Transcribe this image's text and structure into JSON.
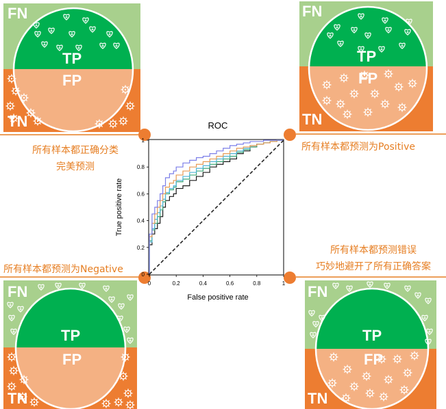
{
  "colors": {
    "light_green": "#a8d08d",
    "dark_green": "#00b050",
    "orange": "#ed7d31",
    "peach": "#f4b183",
    "white": "#ffffff"
  },
  "panels": {
    "top_left": {
      "fn": "FN",
      "tp": "TP",
      "fp": "FP",
      "tn": "TN"
    },
    "top_right": {
      "fn": "FN",
      "tp": "TP",
      "fp": "FP",
      "tn": "TN"
    },
    "bottom_left": {
      "fn": "FN",
      "tp": "TP",
      "fp": "FP",
      "tn": "TN"
    },
    "bottom_right": {
      "fn": "FN",
      "tp": "TP",
      "fp": "FP",
      "tn": "TN"
    }
  },
  "captions": {
    "top_left_line1": "所有样本都正确分类",
    "top_left_line2": "完美预测",
    "top_right": "所有样本都预测为Positive",
    "bottom_left": "所有样本都预测为Negative",
    "bottom_right_line1": "所有样本都预测错误",
    "bottom_right_line2": "巧妙地避开了所有正确答案"
  },
  "chart_data": {
    "type": "line",
    "title": "ROC",
    "xlabel": "False positive rate",
    "ylabel": "True positive rate",
    "xlim": [
      0,
      1
    ],
    "ylim": [
      0,
      1
    ],
    "x_ticks": [
      "0",
      "0.2",
      "0.4",
      "0.6",
      "0.8",
      "1"
    ],
    "y_ticks": [
      "0",
      "0.2",
      "0.4",
      "0.6",
      "0.8",
      "1"
    ],
    "series": [
      {
        "color": "#1a1a1a",
        "x": [
          0,
          0.02,
          0.04,
          0.06,
          0.08,
          0.1,
          0.12,
          0.15,
          0.18,
          0.2,
          0.25,
          0.3,
          0.35,
          0.4,
          0.45,
          0.5,
          0.55,
          0.6,
          0.65,
          0.7,
          0.75,
          0.8,
          0.85,
          0.9,
          0.95,
          1
        ],
        "y": [
          0,
          0.22,
          0.3,
          0.34,
          0.38,
          0.43,
          0.5,
          0.55,
          0.58,
          0.6,
          0.64,
          0.66,
          0.7,
          0.73,
          0.76,
          0.8,
          0.82,
          0.84,
          0.86,
          0.9,
          0.92,
          0.95,
          0.97,
          0.98,
          0.99,
          1
        ]
      },
      {
        "color": "#3aa676",
        "x": [
          0,
          0.02,
          0.04,
          0.06,
          0.08,
          0.1,
          0.12,
          0.15,
          0.18,
          0.2,
          0.25,
          0.3,
          0.35,
          0.4,
          0.45,
          0.5,
          0.55,
          0.6,
          0.65,
          0.7,
          0.75,
          0.8,
          0.85,
          0.9,
          0.95,
          1
        ],
        "y": [
          0,
          0.25,
          0.33,
          0.38,
          0.43,
          0.48,
          0.54,
          0.6,
          0.63,
          0.65,
          0.69,
          0.71,
          0.74,
          0.77,
          0.79,
          0.82,
          0.84,
          0.86,
          0.88,
          0.91,
          0.93,
          0.95,
          0.97,
          0.98,
          0.99,
          1
        ]
      },
      {
        "color": "#4cb3d6",
        "x": [
          0,
          0.02,
          0.04,
          0.06,
          0.08,
          0.1,
          0.12,
          0.15,
          0.18,
          0.2,
          0.25,
          0.3,
          0.35,
          0.4,
          0.45,
          0.5,
          0.55,
          0.6,
          0.65,
          0.7,
          0.75,
          0.8,
          0.85,
          0.9,
          0.95,
          1
        ],
        "y": [
          0,
          0.24,
          0.34,
          0.41,
          0.46,
          0.51,
          0.56,
          0.61,
          0.64,
          0.66,
          0.7,
          0.73,
          0.76,
          0.79,
          0.81,
          0.84,
          0.86,
          0.88,
          0.9,
          0.92,
          0.94,
          0.96,
          0.97,
          0.98,
          0.99,
          1
        ]
      },
      {
        "color": "#e69b55",
        "x": [
          0,
          0.02,
          0.04,
          0.06,
          0.08,
          0.1,
          0.12,
          0.15,
          0.18,
          0.2,
          0.25,
          0.3,
          0.35,
          0.4,
          0.45,
          0.5,
          0.55,
          0.6,
          0.65,
          0.7,
          0.75,
          0.8,
          0.85,
          0.9,
          0.95,
          1
        ],
        "y": [
          0,
          0.28,
          0.38,
          0.45,
          0.5,
          0.55,
          0.6,
          0.65,
          0.68,
          0.7,
          0.74,
          0.77,
          0.8,
          0.82,
          0.84,
          0.86,
          0.88,
          0.9,
          0.92,
          0.94,
          0.95,
          0.96,
          0.97,
          0.98,
          0.99,
          1
        ]
      },
      {
        "color": "#7b7ee8",
        "x": [
          0,
          0.02,
          0.04,
          0.06,
          0.08,
          0.1,
          0.12,
          0.15,
          0.18,
          0.2,
          0.25,
          0.3,
          0.35,
          0.4,
          0.45,
          0.5,
          0.55,
          0.6,
          0.65,
          0.7,
          0.75,
          0.8,
          0.85,
          0.9,
          0.95,
          1
        ],
        "y": [
          0,
          0.3,
          0.45,
          0.5,
          0.55,
          0.6,
          0.66,
          0.72,
          0.75,
          0.77,
          0.8,
          0.83,
          0.85,
          0.87,
          0.88,
          0.9,
          0.92,
          0.94,
          0.96,
          0.97,
          0.98,
          0.99,
          0.99,
          1,
          1,
          1
        ]
      },
      {
        "color": "#222222",
        "dashed": true,
        "x": [
          0,
          1
        ],
        "y": [
          0,
          1
        ]
      }
    ]
  }
}
